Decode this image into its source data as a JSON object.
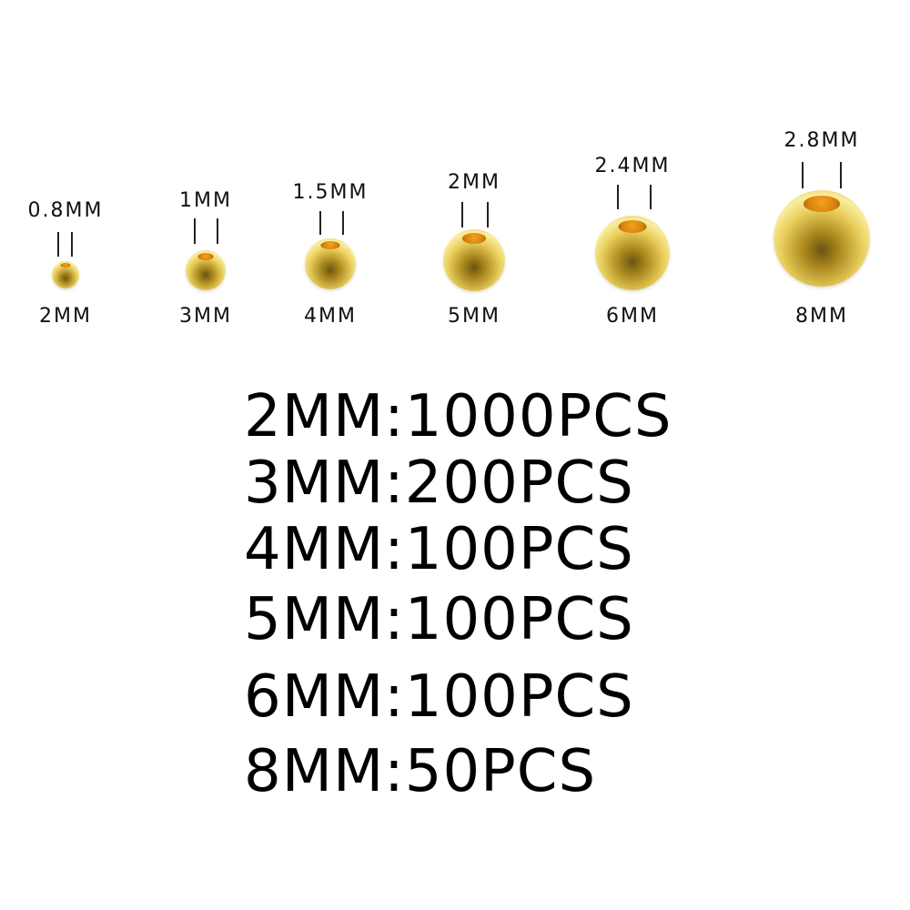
{
  "beads": [
    {
      "size": "2MM",
      "hole": "0.8MM"
    },
    {
      "size": "3MM",
      "hole": "1MM"
    },
    {
      "size": "4MM",
      "hole": "1.5MM"
    },
    {
      "size": "5MM",
      "hole": "2MM"
    },
    {
      "size": "6MM",
      "hole": "2.4MM"
    },
    {
      "size": "8MM",
      "hole": "2.8MM"
    }
  ],
  "quantities": [
    "2MM:1000PCS",
    "3MM:200PCS",
    "4MM:100PCS",
    "5MM:100PCS",
    "6MM:100PCS",
    "8MM:50PCS"
  ],
  "colors": {
    "bead": "#e8cd5a",
    "hole": "#f4a21c",
    "text": "#111111"
  }
}
